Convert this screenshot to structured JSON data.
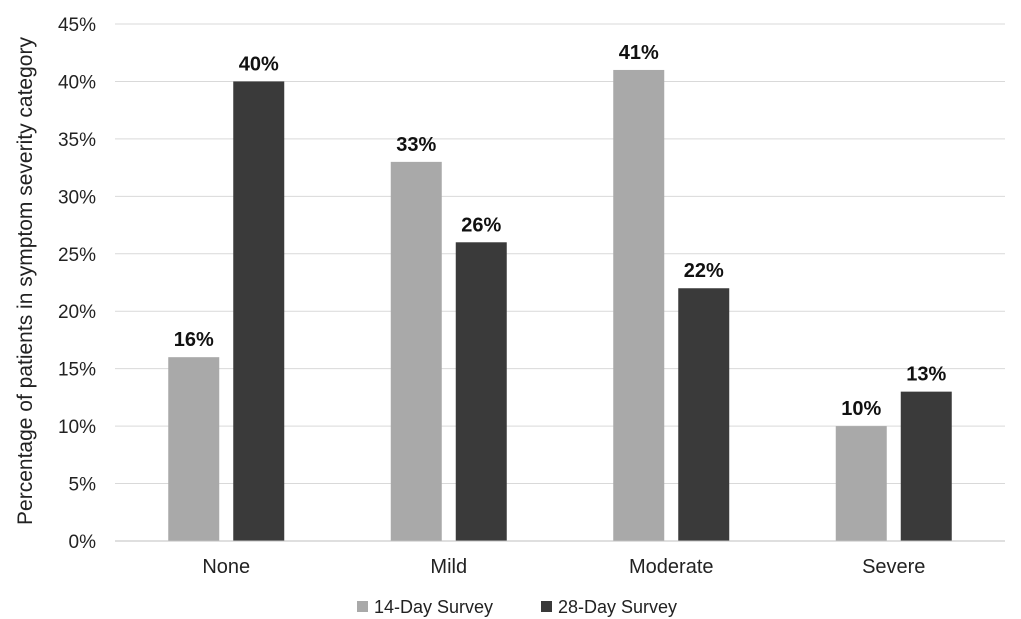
{
  "chart_data": {
    "type": "bar",
    "title": "",
    "xlabel": "",
    "ylabel": "Percentage of patients in symptom severity category",
    "categories": [
      "None",
      "Mild",
      "Moderate",
      "Severe"
    ],
    "series": [
      {
        "name": "14-Day Survey",
        "values": [
          16,
          33,
          41,
          10
        ],
        "labels": [
          "16%",
          "33%",
          "41%",
          "10%"
        ],
        "color": "#a9a9a9"
      },
      {
        "name": "28-Day Survey",
        "values": [
          40,
          26,
          22,
          13
        ],
        "labels": [
          "40%",
          "26%",
          "22%",
          "13%"
        ],
        "color": "#3a3a3a"
      }
    ],
    "ylim": [
      0,
      45
    ],
    "yticks": [
      "0%",
      "5%",
      "10%",
      "15%",
      "20%",
      "25%",
      "30%",
      "35%",
      "40%",
      "45%"
    ],
    "grid": true,
    "legend_position": "bottom"
  }
}
